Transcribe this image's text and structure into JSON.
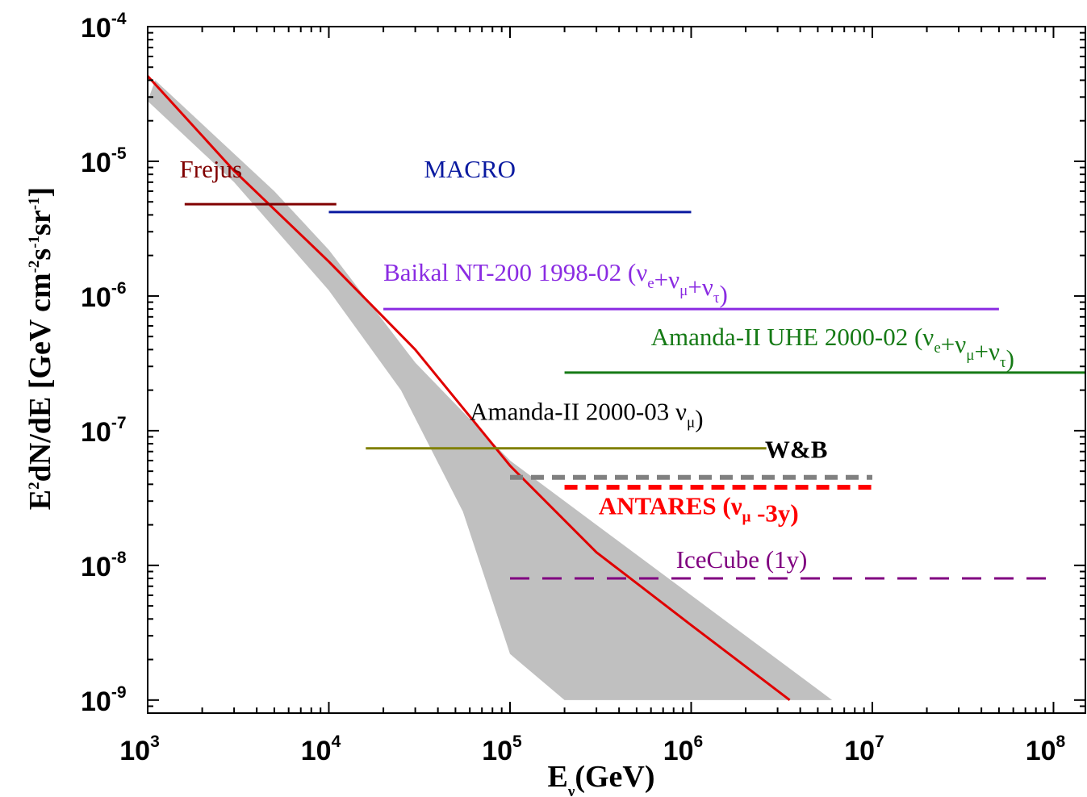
{
  "chart_data": {
    "type": "line",
    "x_scale": "log",
    "y_scale": "log",
    "xlim": [
      1000,
      150000000
    ],
    "ylim": [
      8e-10,
      0.0001
    ],
    "x_ticks": [
      {
        "value": 1000,
        "base": "10",
        "exp": "3"
      },
      {
        "value": 10000,
        "base": "10",
        "exp": "4"
      },
      {
        "value": 100000,
        "base": "10",
        "exp": "5"
      },
      {
        "value": 1000000,
        "base": "10",
        "exp": "6"
      },
      {
        "value": 10000000,
        "base": "10",
        "exp": "7"
      },
      {
        "value": 100000000,
        "base": "10",
        "exp": "8"
      }
    ],
    "y_ticks": [
      {
        "value": 1e-09,
        "base": "10",
        "exp": "-9"
      },
      {
        "value": 1e-08,
        "base": "10",
        "exp": "-8"
      },
      {
        "value": 1e-07,
        "base": "10",
        "exp": "-7"
      },
      {
        "value": 1e-06,
        "base": "10",
        "exp": "-6"
      },
      {
        "value": 1e-05,
        "base": "10",
        "exp": "-5"
      },
      {
        "value": 0.0001,
        "base": "10",
        "exp": "-4"
      }
    ],
    "xlabel": {
      "main": "E",
      "sub": "ν",
      "rest": "(GeV)"
    },
    "ylabel": {
      "part1": "E",
      "sup1": "2",
      "part2": "dN/dE [GeV cm",
      "sup2": "-2",
      "part3": "s",
      "sup3": "-1",
      "part4": "sr",
      "sup4": "-1",
      "part5": "]"
    },
    "band": {
      "color": "#c0c0c0",
      "upper": [
        [
          1100,
          4e-05
        ],
        [
          5000,
          6e-06
        ],
        [
          10000,
          2.2e-06
        ],
        [
          30000,
          3.2e-07
        ],
        [
          100000,
          6e-08
        ],
        [
          300000,
          2e-08
        ],
        [
          1000000,
          6e-09
        ],
        [
          3000000,
          2e-09
        ],
        [
          6000000,
          1e-09
        ]
      ],
      "lower": [
        [
          1000,
          2.8e-05
        ],
        [
          3000,
          7e-06
        ],
        [
          10000,
          1.1e-06
        ],
        [
          25000,
          2e-07
        ],
        [
          55000,
          2.5e-08
        ],
        [
          100000,
          2.2e-09
        ],
        [
          200000,
          1e-09
        ]
      ]
    },
    "series": [
      {
        "type": "curve",
        "color": "#e00000",
        "width": 3,
        "points": [
          [
            1000,
            4.3e-05
          ],
          [
            3000,
            8.5e-06
          ],
          [
            10000,
            1.8e-06
          ],
          [
            30000,
            4e-07
          ],
          [
            100000,
            5.5e-08
          ],
          [
            300000,
            1.25e-08
          ],
          [
            1000000,
            3.6e-09
          ],
          [
            3500000,
            1e-09
          ]
        ]
      },
      {
        "type": "limit",
        "color": "#800000",
        "width": 3,
        "dash": "",
        "x": [
          1600,
          11000
        ],
        "y": 4.8e-06,
        "label": {
          "text": "Frejus",
          "x": 1500,
          "y": 7.6e-06,
          "anchor": "start",
          "bold": false
        }
      },
      {
        "type": "limit",
        "color": "#0a1aa0",
        "width": 3,
        "dash": "",
        "x": [
          10000,
          1000000
        ],
        "y": 4.2e-06,
        "label": {
          "text": "MACRO",
          "x": 60000,
          "y": 7.6e-06,
          "anchor": "middle",
          "bold": false
        }
      },
      {
        "type": "limit",
        "color": "#8a2be2",
        "width": 3,
        "dash": "",
        "x": [
          20000,
          50000000
        ],
        "y": 8e-07,
        "label": {
          "text": "Baikal NT-200 1998-02 (",
          "nu_sub": [
            "e",
            "μ",
            "τ"
          ],
          "x": 20000,
          "y": 1.3e-06,
          "anchor": "start",
          "bold": false
        }
      },
      {
        "type": "limit",
        "color": "#157a15",
        "width": 3,
        "dash": "",
        "x": [
          200000,
          150000000
        ],
        "y": 2.7e-07,
        "label": {
          "text": "Amanda-II UHE 2000-02 (",
          "nu_sub": [
            "e",
            "μ",
            "τ"
          ],
          "x": 600000,
          "y": 4.3e-07,
          "anchor": "start",
          "bold": false
        }
      },
      {
        "type": "limit",
        "color": "#808000",
        "width": 3,
        "dash": "",
        "x": [
          16000,
          2600000
        ],
        "y": 7.4e-08,
        "label": {
          "text": "Amanda-II  2000-03 ",
          "nu_sub": [
            "μ"
          ],
          "x": 60000,
          "y": 1.2e-07,
          "anchor": "start",
          "bold": false,
          "text_color": "#000000"
        }
      },
      {
        "type": "limit",
        "color": "#808080",
        "width": 6,
        "dash": "16,10",
        "x": [
          100000,
          10000000
        ],
        "y": 4.5e-08,
        "label": {
          "text": "W&B",
          "x": 3800000,
          "y": 6.3e-08,
          "anchor": "middle",
          "bold": true,
          "text_color": "#000000"
        }
      },
      {
        "type": "limit",
        "color": "#ff0000",
        "width": 6,
        "dash": "16,10",
        "x": [
          200000,
          10000000
        ],
        "y": 3.8e-08,
        "label": {
          "text": "ANTARES (",
          "nu_sub": [
            "μ"
          ],
          "tail": " -3y)",
          "x": 1100000,
          "y": 2.4e-08,
          "anchor": "middle",
          "bold": true
        }
      },
      {
        "type": "limit",
        "color": "#800080",
        "width": 3,
        "dash": "24,16",
        "x": [
          100000,
          100000000
        ],
        "y": 8e-09,
        "label": {
          "text": "IceCube (1y)",
          "x": 1900000,
          "y": 9.6e-09,
          "anchor": "middle",
          "bold": false
        }
      }
    ],
    "nu_symbol": "ν",
    "plus": "+",
    "close_paren": ")"
  }
}
